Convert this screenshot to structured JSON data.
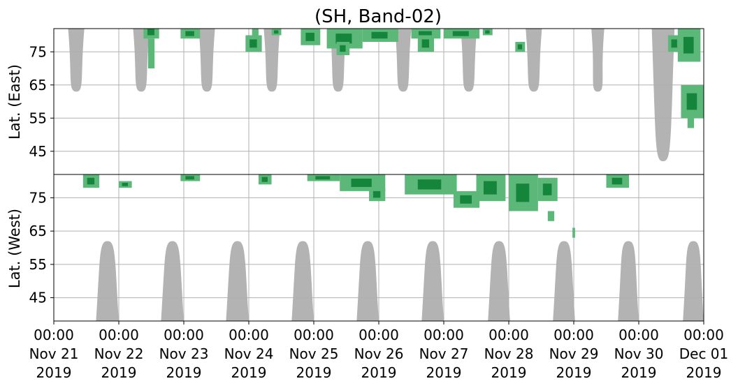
{
  "chart_data": {
    "type": "heatmap",
    "title": "(SH, Band-02)",
    "panels": {
      "east": {
        "ylabel": "Lat. (East)",
        "ylim": [
          38,
          82
        ],
        "ticks": [
          45,
          55,
          65,
          75
        ],
        "tick_labels": [
          "45",
          "55",
          "65",
          "75"
        ]
      },
      "west": {
        "ylabel": "Lat. (West)",
        "ylim": [
          82,
          38
        ],
        "ticks": [
          75,
          65,
          55,
          45
        ],
        "tick_labels": [
          "75",
          "65",
          "55",
          "45"
        ]
      }
    },
    "x": {
      "start_day": 21,
      "end_day": 31,
      "ticks": [
        {
          "day": 21,
          "line1": "00:00",
          "line2": "Nov 21",
          "line3": "2019"
        },
        {
          "day": 22,
          "line1": "00:00",
          "line2": "Nov 22",
          "line3": "2019"
        },
        {
          "day": 23,
          "line1": "00:00",
          "line2": "Nov 23",
          "line3": "2019"
        },
        {
          "day": 24,
          "line1": "00:00",
          "line2": "Nov 24",
          "line3": "2019"
        },
        {
          "day": 25,
          "line1": "00:00",
          "line2": "Nov 25",
          "line3": "2019"
        },
        {
          "day": 26,
          "line1": "00:00",
          "line2": "Nov 26",
          "line3": "2019"
        },
        {
          "day": 27,
          "line1": "00:00",
          "line2": "Nov 27",
          "line3": "2019"
        },
        {
          "day": 28,
          "line1": "00:00",
          "line2": "Nov 28",
          "line3": "2019"
        },
        {
          "day": 29,
          "line1": "00:00",
          "line2": "Nov 29",
          "line3": "2019"
        },
        {
          "day": 30,
          "line1": "00:00",
          "line2": "Nov 30",
          "line3": "2019"
        },
        {
          "day": 31,
          "line1": "00:00",
          "line2": "Dec 01",
          "line3": "2019"
        }
      ]
    },
    "grid": true,
    "colors": {
      "gap": "#b3b3b3",
      "detect_light": "#5cb879",
      "detect_dark": "#14853a",
      "grid": "#b0b0b0"
    },
    "data_gaps": {
      "east": [
        {
          "start": 21.22,
          "end": 21.47,
          "min_lat": 63
        },
        {
          "start": 22.22,
          "end": 22.47,
          "min_lat": 63
        },
        {
          "start": 23.23,
          "end": 23.48,
          "min_lat": 63
        },
        {
          "start": 24.23,
          "end": 24.48,
          "min_lat": 63
        },
        {
          "start": 25.25,
          "end": 25.5,
          "min_lat": 63
        },
        {
          "start": 26.25,
          "end": 26.5,
          "min_lat": 63
        },
        {
          "start": 27.26,
          "end": 27.51,
          "min_lat": 63
        },
        {
          "start": 28.26,
          "end": 28.51,
          "min_lat": 63
        },
        {
          "start": 29.27,
          "end": 29.47,
          "min_lat": 63
        },
        {
          "start": 30.2,
          "end": 30.55,
          "min_lat": 42
        }
      ],
      "west": [
        {
          "start": 21.65,
          "end": 22.0,
          "min_lat": 62
        },
        {
          "start": 22.65,
          "end": 23.0,
          "min_lat": 62
        },
        {
          "start": 23.65,
          "end": 24.0,
          "min_lat": 62
        },
        {
          "start": 24.66,
          "end": 25.0,
          "min_lat": 62
        },
        {
          "start": 25.66,
          "end": 26.0,
          "min_lat": 62
        },
        {
          "start": 26.66,
          "end": 27.0,
          "min_lat": 62
        },
        {
          "start": 27.68,
          "end": 28.02,
          "min_lat": 62
        },
        {
          "start": 28.68,
          "end": 29.02,
          "min_lat": 62
        },
        {
          "start": 29.68,
          "end": 30.0,
          "min_lat": 62
        },
        {
          "start": 30.68,
          "end": 31.0,
          "min_lat": 62
        }
      ]
    },
    "detections": {
      "east": [
        {
          "start": 22.38,
          "end": 22.62,
          "lat_min": 79,
          "lat_max": 83
        },
        {
          "start": 22.45,
          "end": 22.55,
          "lat_min": 70,
          "lat_max": 79
        },
        {
          "start": 22.95,
          "end": 23.25,
          "lat_min": 79,
          "lat_max": 82
        },
        {
          "start": 23.95,
          "end": 24.2,
          "lat_min": 75,
          "lat_max": 80
        },
        {
          "start": 24.05,
          "end": 24.15,
          "lat_min": 80,
          "lat_max": 82
        },
        {
          "start": 24.35,
          "end": 24.5,
          "lat_min": 80,
          "lat_max": 82
        },
        {
          "start": 24.8,
          "end": 25.1,
          "lat_min": 77,
          "lat_max": 82
        },
        {
          "start": 25.2,
          "end": 25.75,
          "lat_min": 76,
          "lat_max": 82
        },
        {
          "start": 25.35,
          "end": 25.55,
          "lat_min": 74,
          "lat_max": 78
        },
        {
          "start": 25.75,
          "end": 26.3,
          "lat_min": 78,
          "lat_max": 82
        },
        {
          "start": 26.5,
          "end": 26.95,
          "lat_min": 79,
          "lat_max": 82
        },
        {
          "start": 26.6,
          "end": 26.85,
          "lat_min": 75,
          "lat_max": 80
        },
        {
          "start": 27.0,
          "end": 27.55,
          "lat_min": 79,
          "lat_max": 82
        },
        {
          "start": 27.6,
          "end": 27.75,
          "lat_min": 80,
          "lat_max": 82
        },
        {
          "start": 28.1,
          "end": 28.25,
          "lat_min": 75,
          "lat_max": 78
        },
        {
          "start": 30.45,
          "end": 30.65,
          "lat_min": 75,
          "lat_max": 80
        },
        {
          "start": 30.6,
          "end": 30.95,
          "lat_min": 72,
          "lat_max": 82
        },
        {
          "start": 30.65,
          "end": 31.0,
          "lat_min": 55,
          "lat_max": 65
        },
        {
          "start": 30.75,
          "end": 30.85,
          "lat_min": 52,
          "lat_max": 56
        }
      ],
      "west": [
        {
          "start": 21.45,
          "end": 21.7,
          "lat_min": 78,
          "lat_max": 82
        },
        {
          "start": 22.0,
          "end": 22.2,
          "lat_min": 78,
          "lat_max": 80
        },
        {
          "start": 22.95,
          "end": 23.25,
          "lat_min": 80,
          "lat_max": 82
        },
        {
          "start": 24.15,
          "end": 24.35,
          "lat_min": 79,
          "lat_max": 82
        },
        {
          "start": 24.9,
          "end": 25.4,
          "lat_min": 80,
          "lat_max": 82
        },
        {
          "start": 25.4,
          "end": 26.1,
          "lat_min": 77,
          "lat_max": 82
        },
        {
          "start": 25.85,
          "end": 26.1,
          "lat_min": 74,
          "lat_max": 78
        },
        {
          "start": 26.4,
          "end": 27.2,
          "lat_min": 76,
          "lat_max": 82
        },
        {
          "start": 27.15,
          "end": 27.55,
          "lat_min": 72,
          "lat_max": 77
        },
        {
          "start": 27.5,
          "end": 27.95,
          "lat_min": 74,
          "lat_max": 82
        },
        {
          "start": 28.0,
          "end": 28.45,
          "lat_min": 71,
          "lat_max": 82
        },
        {
          "start": 28.45,
          "end": 28.75,
          "lat_min": 74,
          "lat_max": 81
        },
        {
          "start": 28.6,
          "end": 28.7,
          "lat_min": 68,
          "lat_max": 71
        },
        {
          "start": 29.5,
          "end": 29.85,
          "lat_min": 78,
          "lat_max": 82
        },
        {
          "start": 28.98,
          "end": 29.02,
          "lat_min": 63,
          "lat_max": 66
        }
      ]
    }
  }
}
